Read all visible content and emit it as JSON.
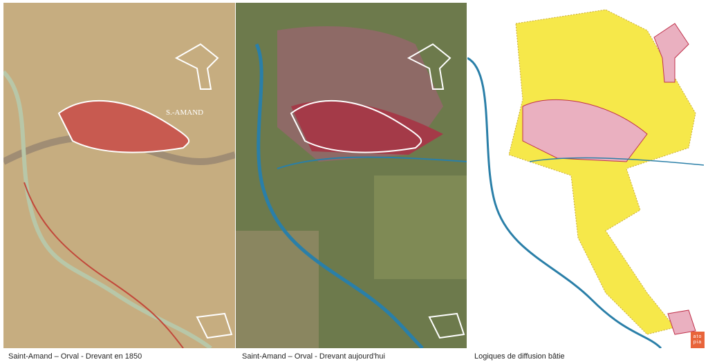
{
  "panels": [
    {
      "caption": "Saint-Amand – Orval - Drevant en 1850",
      "kind": "historic-map-1850"
    },
    {
      "caption": "Saint-Amand – Orval - Drevant aujourd'hui",
      "kind": "aerial-photo"
    },
    {
      "caption": "Logiques de diffusion bâtie",
      "kind": "built-diffusion-diagram"
    }
  ],
  "map_labels": {
    "town": "S.-AMAND"
  },
  "logo": {
    "text": "atopia",
    "line1": "ato",
    "line2": "pia"
  },
  "colors": {
    "river": "#2a7fa8",
    "built": "#e8c840",
    "urban": "#c0304a",
    "outline": "#ffffff",
    "logo": "#e8643a"
  }
}
